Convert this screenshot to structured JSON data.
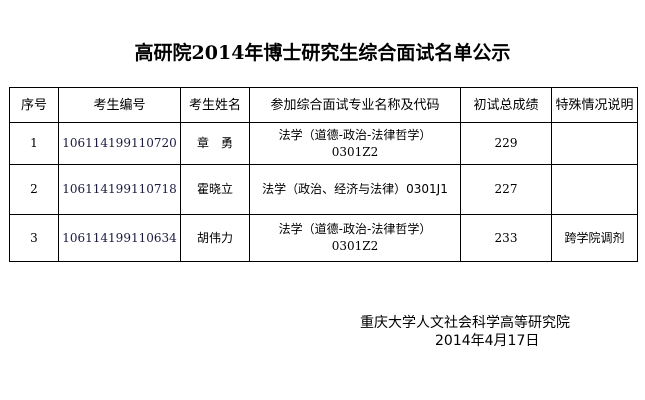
{
  "title": "高研院2014年博士研究生综合面试名单公示",
  "table": {
    "headers": [
      "序号",
      "考生编号",
      "考生姓名",
      "参加综合面试专业名称及代码",
      "初试总成绩",
      "特殊情况说明"
    ],
    "rows": [
      {
        "no": "1",
        "id": "106114199110720",
        "name": "章　勇",
        "major": "法学（道德-政治-法律哲学）",
        "code": "0301Z2",
        "score": "229",
        "note": ""
      },
      {
        "no": "2",
        "id": "106114199110718",
        "name": "霍晓立",
        "major": "法学（政治、经济与法律）0301J1",
        "code": "",
        "score": "227",
        "note": ""
      },
      {
        "no": "3",
        "id": "106114199110634",
        "name": "胡伟力",
        "major": "法学（道德-政治-法律哲学）",
        "code": "0301Z2",
        "score": "233",
        "note": "跨学院调剂"
      }
    ]
  },
  "footer": {
    "org": "重庆大学人文社会科学高等研究院",
    "date": "2014年4月17日"
  }
}
